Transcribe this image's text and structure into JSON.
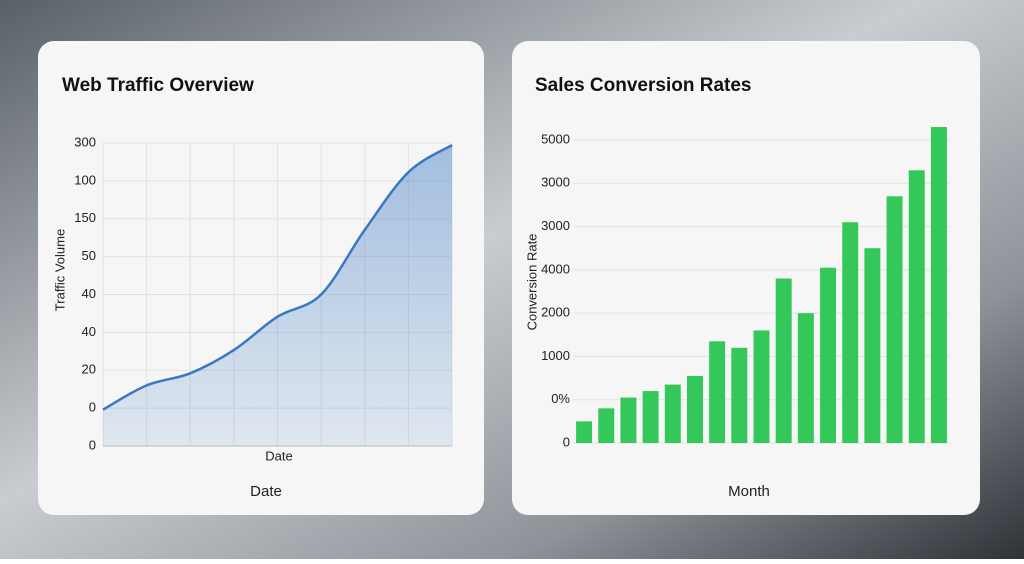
{
  "chart_data": [
    {
      "type": "area",
      "title": "Web Traffic Overview",
      "x_label": "Date",
      "footer_label": "Date",
      "y_label": "Traffic Volume",
      "categories": [
        null,
        null,
        null,
        null,
        null,
        null,
        null,
        null,
        null
      ],
      "values": [
        36,
        60,
        72,
        95,
        128,
        150,
        214,
        271,
        298
      ],
      "color": "#3a78c2",
      "ylim": [
        0,
        300
      ],
      "yticks": [
        0,
        {
          "value": 37.5,
          "label": "0"
        },
        {
          "value": 75,
          "label": "20"
        },
        {
          "value": 112.5,
          "label": "40"
        },
        {
          "value": 150,
          "label": "40"
        },
        {
          "value": 187.5,
          "label": "50"
        },
        {
          "value": 225,
          "label": "150"
        },
        {
          "value": 262.5,
          "label": "100"
        },
        300
      ],
      "grid": true,
      "x_grid": true
    },
    {
      "type": "bar",
      "title": "Sales Conversion Rates",
      "footer_label": "Month",
      "y_label": "Conversion Rate",
      "categories": [
        null,
        null,
        null,
        null,
        null,
        null,
        null,
        null,
        null,
        null,
        null,
        null,
        null,
        null,
        null,
        null,
        null
      ],
      "values": [
        500,
        800,
        1050,
        1200,
        1350,
        1550,
        2350,
        2200,
        2600,
        3800,
        3000,
        4050,
        5100,
        4500,
        5700,
        6300,
        7300
      ],
      "color": "#34c759",
      "ylim": [
        0,
        7400
      ],
      "yticks": [
        0,
        {
          "value": 1000,
          "label": "0%"
        },
        {
          "value": 2000,
          "label": "1000"
        },
        {
          "value": 3000,
          "label": "2000"
        },
        4000,
        {
          "value": 5000,
          "label": "3000"
        },
        {
          "value": 6000,
          "label": "3000"
        },
        {
          "value": 7000,
          "label": "5000"
        }
      ],
      "grid": true
    }
  ]
}
